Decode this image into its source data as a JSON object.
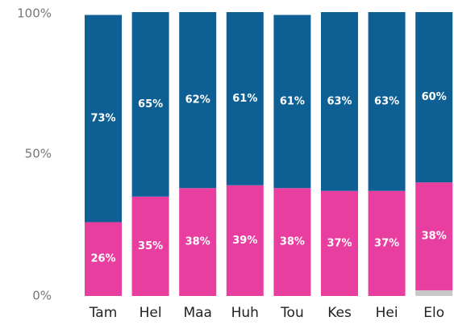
{
  "chart_data": {
    "type": "stacked_bar_100",
    "categories": [
      "Tam",
      "Hel",
      "Maa",
      "Huh",
      "Tou",
      "Kes",
      "Hei",
      "Elo"
    ],
    "series": [
      {
        "color": "#c8c8c8",
        "values": [
          0,
          0,
          0,
          0,
          0,
          0,
          0,
          2
        ]
      },
      {
        "color": "#e83e9f",
        "values": [
          26,
          35,
          38,
          39,
          38,
          37,
          37,
          38
        ],
        "value_labels": [
          "26%",
          "35%",
          "38%",
          "39%",
          "38%",
          "37%",
          "37%",
          "38%"
        ]
      },
      {
        "color": "#0e6094",
        "values": [
          73,
          65,
          62,
          61,
          61,
          63,
          63,
          60
        ],
        "value_labels": [
          "73%",
          "65%",
          "62%",
          "61%",
          "61%",
          "63%",
          "63%",
          "60%"
        ]
      }
    ],
    "ylim": [
      0,
      100
    ],
    "yticks": [
      {
        "value": 0,
        "label": "0%"
      },
      {
        "value": 50,
        "label": "50%"
      },
      {
        "value": 100,
        "label": "100%"
      }
    ],
    "grid": false
  }
}
